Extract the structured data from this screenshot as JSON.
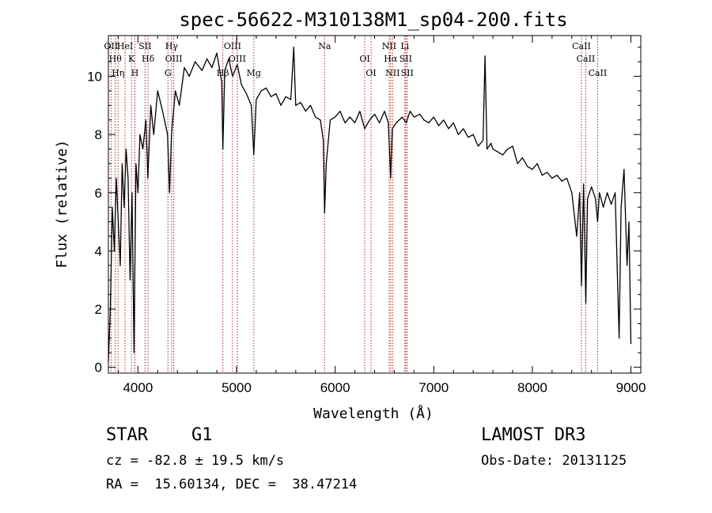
{
  "chart_data": {
    "type": "line",
    "title": "spec-56622-M310138M1_sp04-200.fits",
    "xlabel": "Wavelength (Å)",
    "ylabel": "Flux (relative)",
    "xlim": [
      3700,
      9100
    ],
    "ylim": [
      -0.2,
      11.4
    ],
    "x_ticks": [
      "4000",
      "5000",
      "6000",
      "7000",
      "8000",
      "9000"
    ],
    "y_ticks": [
      "0",
      "2",
      "4",
      "6",
      "8",
      "10"
    ],
    "grid": false,
    "series": [
      {
        "color": "#000000",
        "x": [
          3700,
          3720,
          3740,
          3760,
          3780,
          3800,
          3820,
          3840,
          3860,
          3880,
          3900,
          3920,
          3940,
          3960,
          3970,
          3980,
          4000,
          4020,
          4050,
          4080,
          4100,
          4130,
          4160,
          4200,
          4250,
          4300,
          4320,
          4340,
          4380,
          4420,
          4470,
          4520,
          4580,
          4650,
          4700,
          4750,
          4800,
          4850,
          4861,
          4880,
          4920,
          4960,
          5007,
          5050,
          5100,
          5150,
          5175,
          5200,
          5250,
          5300,
          5350,
          5400,
          5450,
          5500,
          5550,
          5580,
          5600,
          5650,
          5700,
          5750,
          5800,
          5850,
          5880,
          5893,
          5910,
          5950,
          6000,
          6050,
          6100,
          6150,
          6200,
          6250,
          6300,
          6350,
          6400,
          6450,
          6500,
          6540,
          6563,
          6580,
          6620,
          6680,
          6720,
          6760,
          6800,
          6860,
          6900,
          6950,
          7000,
          7050,
          7100,
          7150,
          7200,
          7250,
          7300,
          7350,
          7400,
          7450,
          7500,
          7520,
          7540,
          7580,
          7600,
          7650,
          7700,
          7750,
          7800,
          7850,
          7900,
          7950,
          8000,
          8050,
          8100,
          8150,
          8200,
          8250,
          8300,
          8350,
          8400,
          8450,
          8480,
          8498,
          8520,
          8542,
          8560,
          8600,
          8640,
          8662,
          8680,
          8720,
          8760,
          8800,
          8840,
          8880,
          8900,
          8930,
          8960,
          8980,
          9000
        ],
        "y": [
          0.2,
          2.0,
          5.5,
          4.0,
          6.5,
          5.0,
          3.5,
          7.0,
          5.5,
          7.5,
          6.5,
          3.0,
          6.0,
          0.5,
          4.0,
          7.0,
          6.0,
          8.0,
          7.5,
          8.5,
          6.5,
          9.0,
          8.0,
          9.5,
          8.8,
          8.0,
          6.0,
          8.0,
          9.5,
          9.0,
          10.3,
          10.0,
          10.5,
          10.2,
          10.6,
          10.3,
          10.8,
          9.8,
          7.5,
          10.2,
          10.6,
          10.0,
          10.4,
          9.7,
          9.4,
          9.0,
          7.3,
          9.2,
          9.5,
          9.6,
          9.3,
          9.4,
          9.0,
          9.3,
          9.2,
          11.0,
          9.0,
          9.1,
          8.8,
          9.0,
          8.6,
          8.5,
          7.8,
          5.3,
          7.0,
          8.5,
          8.6,
          8.8,
          8.4,
          8.6,
          8.4,
          8.8,
          8.2,
          8.5,
          8.7,
          8.4,
          8.8,
          8.4,
          6.5,
          8.2,
          8.4,
          8.6,
          8.4,
          8.8,
          8.6,
          8.7,
          8.5,
          8.4,
          8.6,
          8.3,
          8.5,
          8.2,
          8.4,
          8.0,
          8.2,
          7.9,
          8.0,
          7.6,
          7.8,
          10.7,
          7.5,
          7.7,
          7.5,
          7.4,
          7.3,
          7.5,
          7.6,
          7.0,
          7.2,
          6.9,
          6.8,
          7.0,
          6.6,
          6.7,
          6.5,
          6.6,
          6.4,
          6.5,
          6.0,
          4.5,
          6.0,
          2.8,
          6.3,
          2.2,
          5.8,
          6.2,
          5.8,
          5.0,
          6.0,
          5.5,
          6.0,
          5.6,
          6.0,
          1.0,
          5.5,
          6.8,
          3.5,
          5.0,
          0.8
        ]
      }
    ],
    "lines": [
      {
        "x": 3727,
        "labels": [
          "OII"
        ]
      },
      {
        "x": 3770,
        "labels": [
          "Hθ"
        ]
      },
      {
        "x": 3798,
        "labels": [
          "Hη"
        ]
      },
      {
        "x": 3869,
        "labels": [
          "HeI"
        ]
      },
      {
        "x": 3934,
        "labels": [
          "K"
        ]
      },
      {
        "x": 3969,
        "labels": [
          "H"
        ]
      },
      {
        "x": 4072,
        "labels": [
          "SII"
        ]
      },
      {
        "x": 4102,
        "labels": [
          "Hδ"
        ]
      },
      {
        "x": 4304,
        "labels": [
          "G"
        ]
      },
      {
        "x": 4341,
        "labels": [
          "Hγ"
        ]
      },
      {
        "x": 4363,
        "labels": [
          "OIII"
        ]
      },
      {
        "x": 4861,
        "labels": [
          "Hβ"
        ]
      },
      {
        "x": 4959,
        "labels": [
          "OIII"
        ]
      },
      {
        "x": 5007,
        "labels": [
          "OIII"
        ]
      },
      {
        "x": 5175,
        "labels": [
          "Mg"
        ]
      },
      {
        "x": 5893,
        "labels": [
          "Na"
        ]
      },
      {
        "x": 6300,
        "labels": [
          "OI"
        ]
      },
      {
        "x": 6364,
        "labels": [
          "OI"
        ]
      },
      {
        "x": 6548,
        "labels": [
          "NII"
        ]
      },
      {
        "x": 6563,
        "labels": [
          "Hα"
        ]
      },
      {
        "x": 6583,
        "labels": [
          "NII"
        ]
      },
      {
        "x": 6707,
        "labels": [
          "Li"
        ]
      },
      {
        "x": 6716,
        "labels": [
          "SII"
        ]
      },
      {
        "x": 6731,
        "labels": [
          "SII"
        ]
      },
      {
        "x": 8498,
        "labels": [
          "CaII"
        ]
      },
      {
        "x": 8542,
        "labels": [
          "CaII"
        ]
      },
      {
        "x": 8662,
        "labels": [
          "CaII"
        ]
      }
    ],
    "line_color": "#b22222",
    "axis_color": "#000000"
  },
  "footer": {
    "object_class": "STAR",
    "subclass": "G1",
    "survey": "LAMOST DR3",
    "cz": "cz = -82.8 ± 19.5 km/s",
    "obs_date": "Obs-Date: 20131125",
    "radec": "RA =  15.60134, DEC =  38.47214"
  }
}
